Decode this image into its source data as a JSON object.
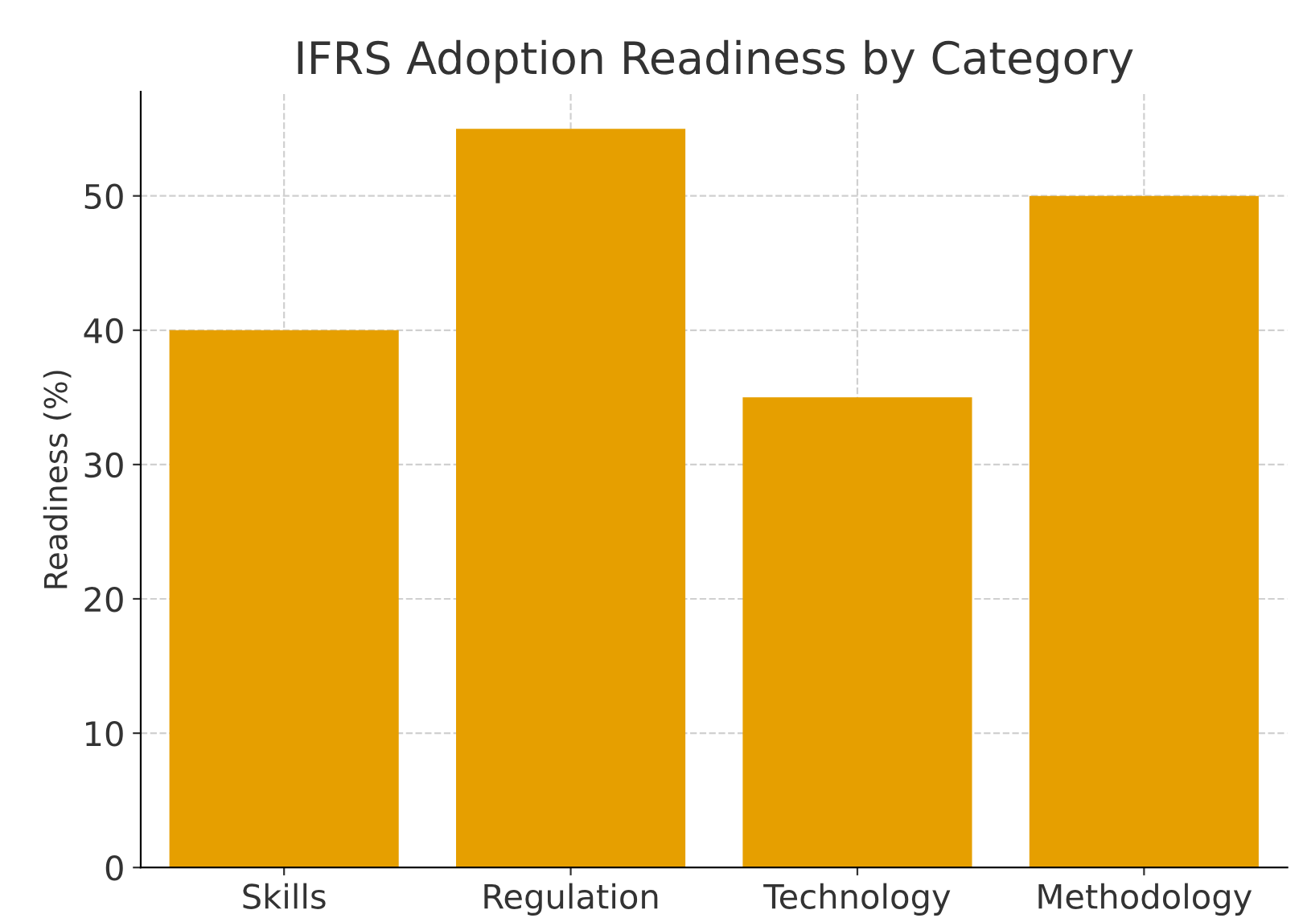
{
  "chart_data": {
    "type": "bar",
    "title": "IFRS Adoption Readiness by Category",
    "ylabel": "Readiness (%)",
    "categories": [
      "Skills",
      "Regulation",
      "Technology",
      "Methodology"
    ],
    "values": [
      40,
      55,
      35,
      50
    ],
    "color": "#e69f00",
    "ylim": [
      0,
      57.75
    ],
    "yticks": [
      0,
      10,
      20,
      30,
      40,
      50
    ],
    "grid": true
  }
}
